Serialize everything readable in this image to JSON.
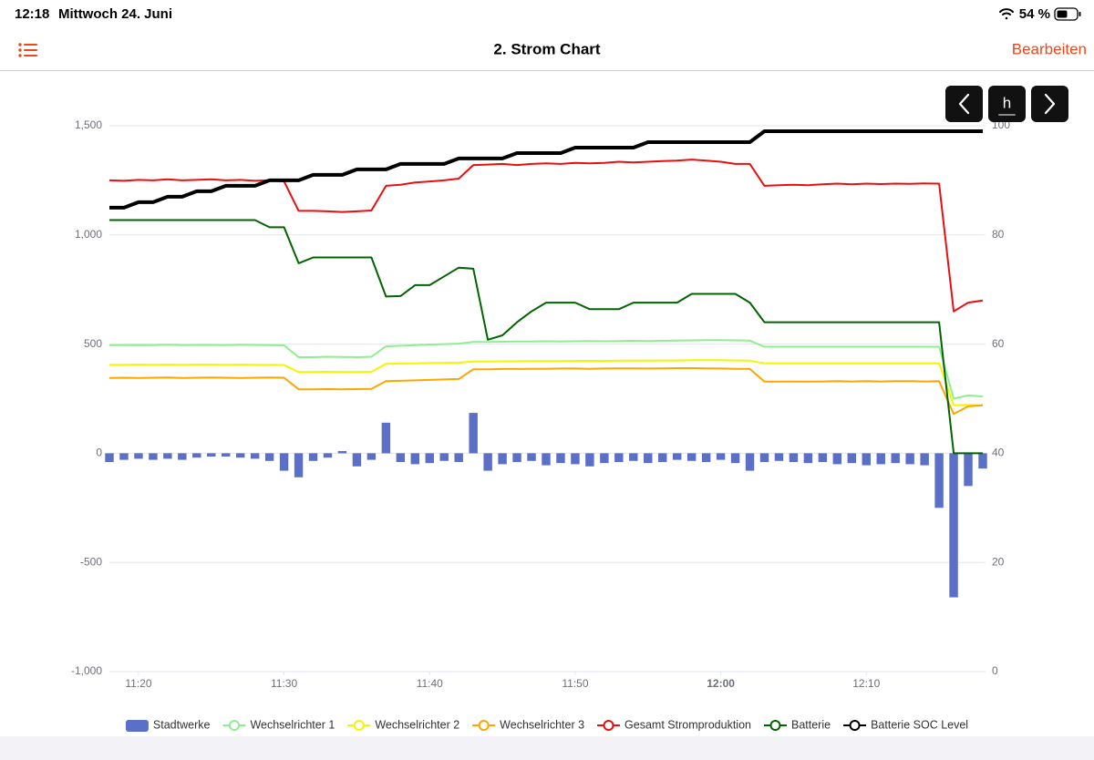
{
  "status_bar": {
    "time": "12:18",
    "date": "Mittwoch 24. Juni",
    "battery": "54 %"
  },
  "nav_bar": {
    "title": "2. Strom Chart",
    "action": "Bearbeiten"
  },
  "range_button": "h",
  "chart_data": {
    "type": "combo",
    "x": [
      "11:18",
      "11:19",
      "11:20",
      "11:21",
      "11:22",
      "11:23",
      "11:24",
      "11:25",
      "11:26",
      "11:27",
      "11:28",
      "11:29",
      "11:30",
      "11:31",
      "11:32",
      "11:33",
      "11:34",
      "11:35",
      "11:36",
      "11:37",
      "11:38",
      "11:39",
      "11:40",
      "11:41",
      "11:42",
      "11:43",
      "11:44",
      "11:45",
      "11:46",
      "11:47",
      "11:48",
      "11:49",
      "11:50",
      "11:51",
      "11:52",
      "11:53",
      "11:54",
      "11:55",
      "11:56",
      "11:57",
      "11:58",
      "11:59",
      "12:00",
      "12:01",
      "12:02",
      "12:03",
      "12:04",
      "12:05",
      "12:06",
      "12:07",
      "12:08",
      "12:09",
      "12:10",
      "12:11",
      "12:12",
      "12:13",
      "12:14",
      "12:15",
      "12:16",
      "12:17",
      "12:18"
    ],
    "xlim": [
      "11:18",
      "12:18"
    ],
    "xticks": [
      "11:20",
      "11:30",
      "11:40",
      "11:50",
      "12:00",
      "12:10"
    ],
    "ylim": [
      -1000,
      1500
    ],
    "yticks": [
      {
        "value": -1000,
        "label": "-1,000"
      },
      -500,
      0,
      500,
      {
        "value": 1000,
        "label": "1,000"
      },
      {
        "value": 1500,
        "label": "1,500"
      }
    ],
    "y2lim": [
      0,
      100
    ],
    "y2ticks": [
      0,
      20,
      40,
      60,
      80,
      100
    ],
    "grid": true,
    "legend": "bottom",
    "series": [
      {
        "name": "Stadtwerke",
        "type": "bar",
        "color": "#5a6fc7",
        "values": [
          -40,
          -30,
          -25,
          -30,
          -25,
          -30,
          -20,
          -15,
          -15,
          -20,
          -25,
          -35,
          -80,
          -110,
          -35,
          -20,
          10,
          -60,
          -30,
          140,
          -40,
          -50,
          -45,
          -35,
          -40,
          185,
          -80,
          -50,
          -40,
          -35,
          -55,
          -45,
          -50,
          -60,
          -45,
          -40,
          -35,
          -45,
          -40,
          -30,
          -35,
          -40,
          -30,
          -45,
          -80,
          -40,
          -35,
          -40,
          -45,
          -40,
          -50,
          -45,
          -55,
          -50,
          -45,
          -50,
          -55,
          -250,
          -660,
          -150,
          -70
        ]
      },
      {
        "name": "Wechselrichter 1",
        "type": "line",
        "color": "#90ee90",
        "values": [
          495,
          495,
          496,
          495,
          497,
          495,
          496,
          496,
          495,
          497,
          496,
          495,
          494,
          440,
          440,
          442,
          441,
          440,
          442,
          490,
          492,
          495,
          498,
          500,
          502,
          510,
          510,
          511,
          512,
          512,
          513,
          512,
          513,
          514,
          513,
          514,
          515,
          514,
          515,
          516,
          517,
          518,
          518,
          517,
          516,
          488,
          488,
          488,
          488,
          488,
          488,
          488,
          488,
          488,
          488,
          488,
          488,
          488,
          250,
          265,
          260
        ]
      },
      {
        "name": "Wechselrichter 2",
        "type": "line",
        "color": "#f5f500",
        "values": [
          405,
          405,
          406,
          405,
          406,
          405,
          406,
          406,
          405,
          406,
          405,
          405,
          404,
          372,
          372,
          373,
          372,
          372,
          373,
          410,
          411,
          412,
          413,
          414,
          415,
          420,
          420,
          421,
          421,
          422,
          422,
          422,
          423,
          423,
          423,
          424,
          424,
          424,
          425,
          425,
          426,
          426,
          426,
          425,
          424,
          412,
          412,
          412,
          412,
          412,
          412,
          412,
          412,
          412,
          412,
          412,
          412,
          412,
          220,
          222,
          220
        ]
      },
      {
        "name": "Wechselrichter 3",
        "type": "line",
        "color": "#ffa500",
        "values": [
          345,
          346,
          345,
          346,
          347,
          345,
          346,
          347,
          346,
          345,
          346,
          347,
          346,
          293,
          293,
          294,
          293,
          294,
          295,
          330,
          332,
          334,
          336,
          338,
          340,
          385,
          385,
          386,
          386,
          387,
          387,
          388,
          388,
          387,
          388,
          389,
          389,
          388,
          389,
          390,
          390,
          389,
          388,
          387,
          386,
          328,
          328,
          329,
          328,
          329,
          330,
          329,
          330,
          329,
          330,
          330,
          329,
          330,
          180,
          215,
          220
        ]
      },
      {
        "name": "Gesamt Stromproduktion",
        "type": "line",
        "color": "#e8100e",
        "values": [
          1250,
          1248,
          1252,
          1250,
          1255,
          1250,
          1252,
          1255,
          1250,
          1252,
          1248,
          1250,
          1245,
          1110,
          1110,
          1108,
          1105,
          1108,
          1112,
          1225,
          1230,
          1240,
          1245,
          1250,
          1258,
          1320,
          1322,
          1325,
          1320,
          1325,
          1328,
          1325,
          1330,
          1328,
          1330,
          1335,
          1332,
          1335,
          1338,
          1340,
          1345,
          1340,
          1335,
          1325,
          1325,
          1225,
          1228,
          1230,
          1228,
          1232,
          1235,
          1232,
          1235,
          1233,
          1235,
          1234,
          1236,
          1235,
          650,
          690,
          700
        ]
      },
      {
        "name": "Batterie",
        "type": "line",
        "color": "#006400",
        "values": [
          1068,
          1068,
          1068,
          1068,
          1068,
          1068,
          1068,
          1068,
          1068,
          1068,
          1068,
          1035,
          1035,
          870,
          897,
          897,
          897,
          897,
          897,
          718,
          720,
          770,
          770,
          810,
          850,
          845,
          520,
          540,
          600,
          650,
          690,
          690,
          690,
          660,
          660,
          660,
          690,
          690,
          690,
          690,
          730,
          730,
          730,
          730,
          690,
          600,
          600,
          600,
          600,
          600,
          600,
          600,
          600,
          600,
          600,
          600,
          600,
          600,
          0,
          0,
          0
        ]
      },
      {
        "name": "Batterie SOC Level",
        "type": "line",
        "color": "#000000",
        "axis": "y2",
        "values": [
          85,
          85,
          86,
          86,
          87,
          87,
          88,
          88,
          89,
          89,
          89,
          90,
          90,
          90,
          91,
          91,
          91,
          92,
          92,
          92,
          93,
          93,
          93,
          93,
          94,
          94,
          94,
          94,
          95,
          95,
          95,
          95,
          96,
          96,
          96,
          96,
          96,
          97,
          97,
          97,
          97,
          97,
          97,
          97,
          97,
          99,
          99,
          99,
          99,
          99,
          99,
          99,
          99,
          99,
          99,
          99,
          99,
          99,
          99,
          99,
          99
        ]
      }
    ]
  }
}
